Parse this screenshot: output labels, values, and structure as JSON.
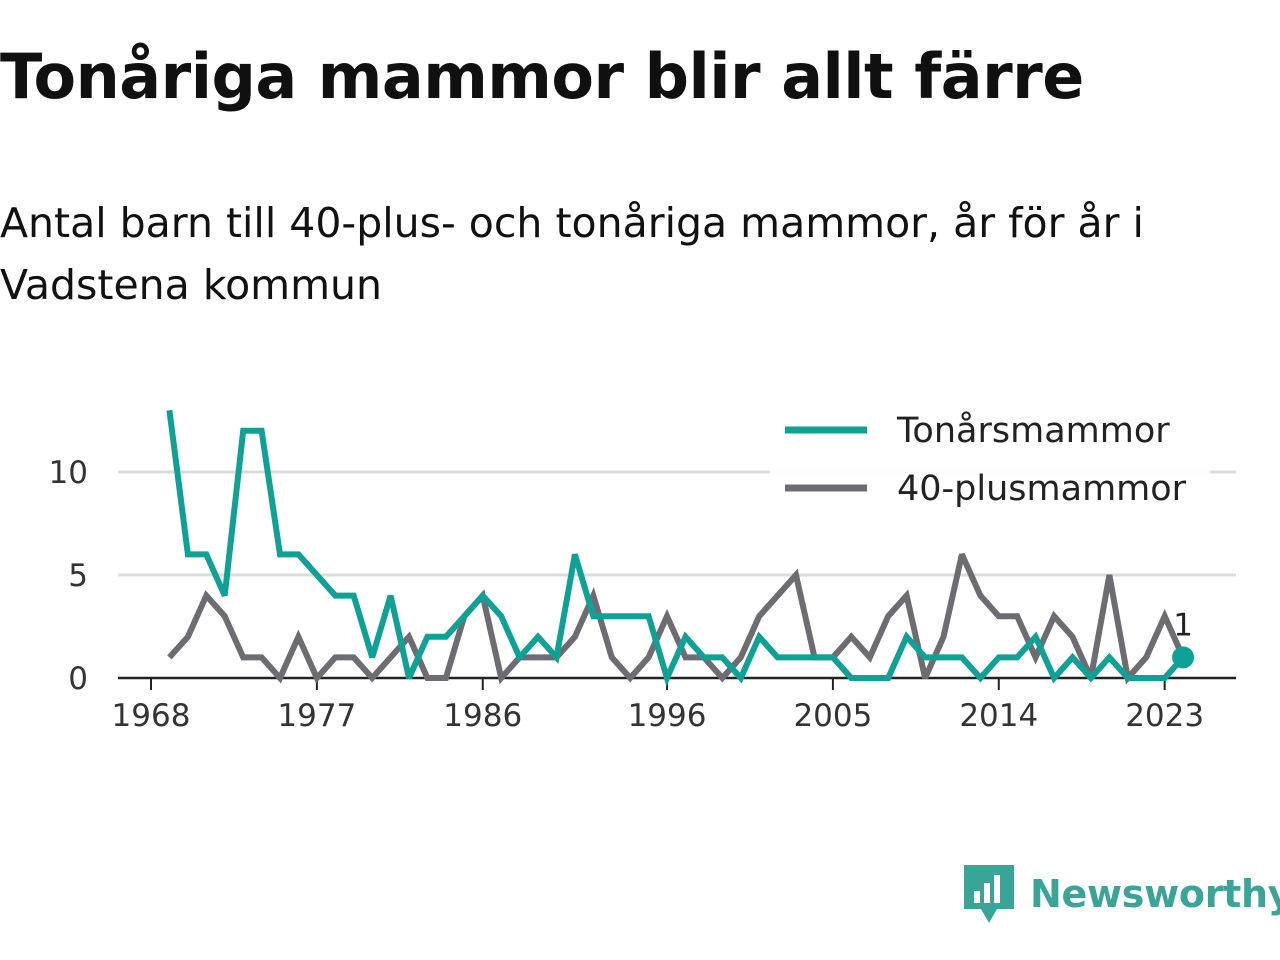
{
  "chart_data": {
    "type": "line",
    "title": "Tonåriga mammor blir allt färre",
    "subtitle": "Antal barn till 40-plus- och tonåriga mammor, år för år i Vadstena kommun",
    "xlabel": "",
    "ylabel": "",
    "x": [
      1969,
      1970,
      1971,
      1972,
      1973,
      1974,
      1975,
      1976,
      1977,
      1978,
      1979,
      1980,
      1981,
      1982,
      1983,
      1984,
      1985,
      1986,
      1987,
      1988,
      1989,
      1990,
      1991,
      1992,
      1993,
      1994,
      1995,
      1996,
      1997,
      1998,
      1999,
      2000,
      2001,
      2002,
      2003,
      2004,
      2005,
      2006,
      2007,
      2008,
      2009,
      2010,
      2011,
      2012,
      2013,
      2014,
      2015,
      2016,
      2017,
      2018,
      2019,
      2020,
      2021,
      2022,
      2023,
      2024
    ],
    "xlim": [
      1968,
      2024
    ],
    "ylim": [
      0,
      13
    ],
    "x_ticks": [
      "1968",
      "1977",
      "1986",
      "1996",
      "2005",
      "2014",
      "2023"
    ],
    "y_ticks": [
      "0",
      "5",
      "10"
    ],
    "grid": "horizontal",
    "legend_position": "top-right",
    "series": [
      {
        "name": "Tonårsmammor",
        "color": "#10a196",
        "values": [
          13,
          6,
          6,
          4,
          12,
          12,
          6,
          6,
          5,
          4,
          4,
          1,
          4,
          0,
          2,
          2,
          3,
          4,
          3,
          1,
          2,
          1,
          6,
          3,
          3,
          3,
          3,
          0,
          2,
          1,
          1,
          0,
          2,
          1,
          1,
          1,
          1,
          0,
          0,
          0,
          2,
          1,
          1,
          1,
          0,
          1,
          1,
          2,
          0,
          1,
          0,
          1,
          0,
          0,
          0,
          1
        ],
        "end_label": "1"
      },
      {
        "name": "40-plusmammor",
        "color": "#6c6c72",
        "values": [
          1,
          2,
          4,
          3,
          1,
          1,
          0,
          2,
          0,
          1,
          1,
          0,
          1,
          2,
          0,
          0,
          3,
          4,
          0,
          1,
          1,
          1,
          2,
          4,
          1,
          0,
          1,
          3,
          1,
          1,
          0,
          1,
          3,
          4,
          5,
          1,
          1,
          2,
          1,
          3,
          4,
          0,
          2,
          6,
          4,
          3,
          3,
          1,
          3,
          2,
          0,
          5,
          0,
          1,
          3,
          1
        ]
      }
    ]
  },
  "brand": {
    "name": "Newsworthy",
    "icon": "newsworthy-logo-icon",
    "color": "#3aa597"
  }
}
